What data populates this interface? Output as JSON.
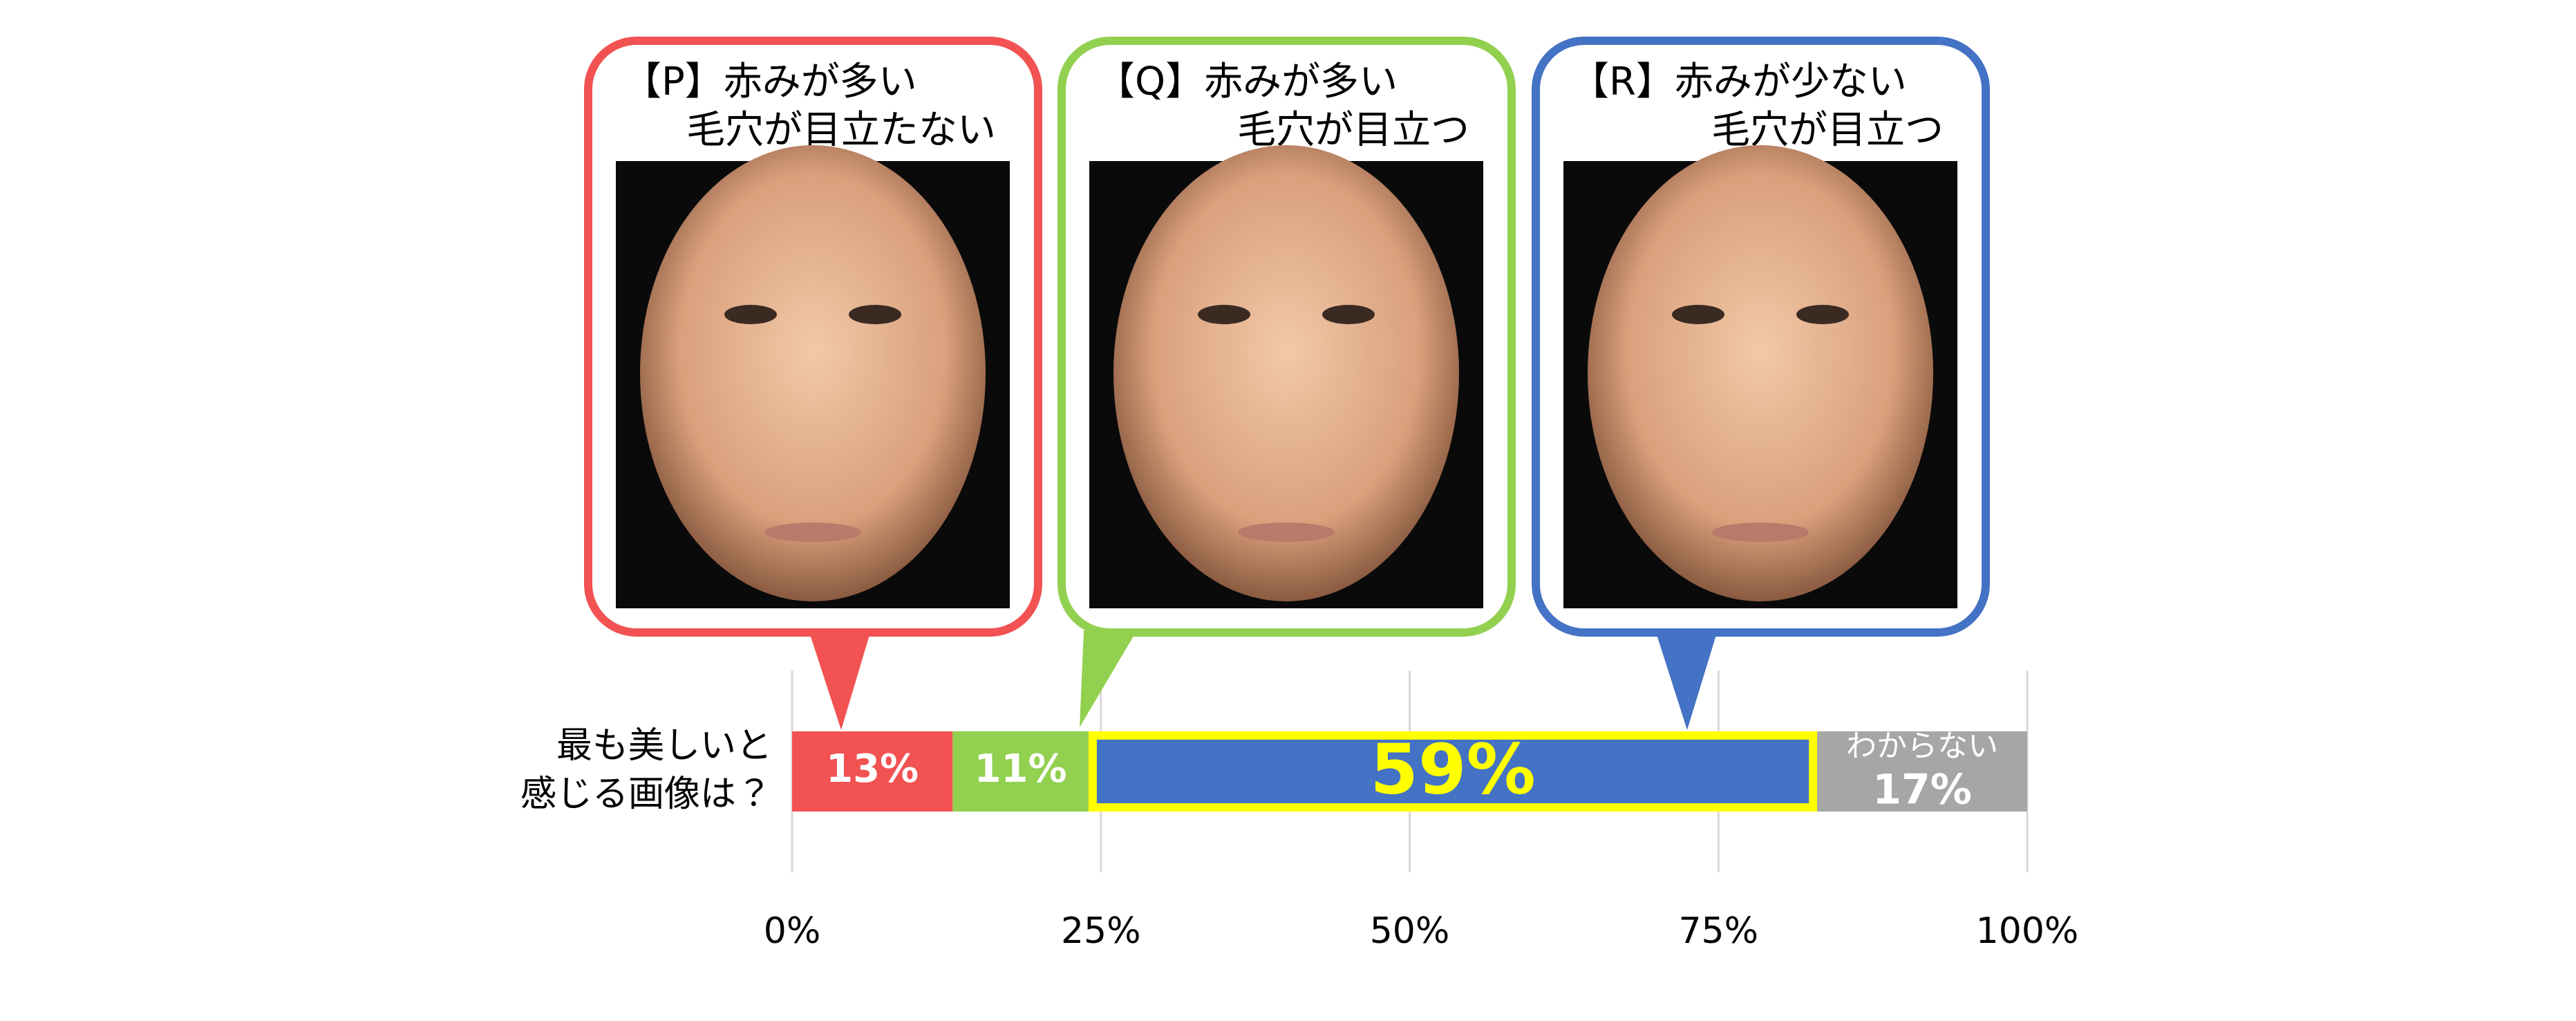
{
  "chart_data": {
    "type": "stacked-bar-horizontal",
    "category_lines": [
      "最も美しいと",
      "感じる画像は？"
    ],
    "series": [
      {
        "label_lines": [
          "【P】赤みが多い",
          "毛穴が目立たない"
        ],
        "color": "#f25252",
        "values": [
          13
        ],
        "value_labels": [
          "13%"
        ]
      },
      {
        "label_lines": [
          "【Q】赤みが多い",
          "毛穴が目立つ"
        ],
        "color": "#92d050",
        "values": [
          11
        ],
        "value_labels": [
          "11%"
        ]
      },
      {
        "label_lines": [
          "【R】赤みが少ない",
          "毛穴が目立つ"
        ],
        "color": "#4472c4",
        "values": [
          59
        ],
        "value_labels": [
          "59%"
        ],
        "highlight": "#ffff00"
      },
      {
        "label_lines": [
          "わからない"
        ],
        "color": "#a6a6a6",
        "values": [
          17
        ],
        "value_labels": [
          "17%"
        ]
      }
    ],
    "xlim": [
      0,
      100
    ],
    "xticks": [
      {
        "value": 0,
        "label": "0%"
      },
      {
        "value": 25,
        "label": "25%"
      },
      {
        "value": 50,
        "label": "50%"
      },
      {
        "value": 75,
        "label": "75%"
      },
      {
        "value": 100,
        "label": "100%"
      }
    ],
    "grid": true
  }
}
